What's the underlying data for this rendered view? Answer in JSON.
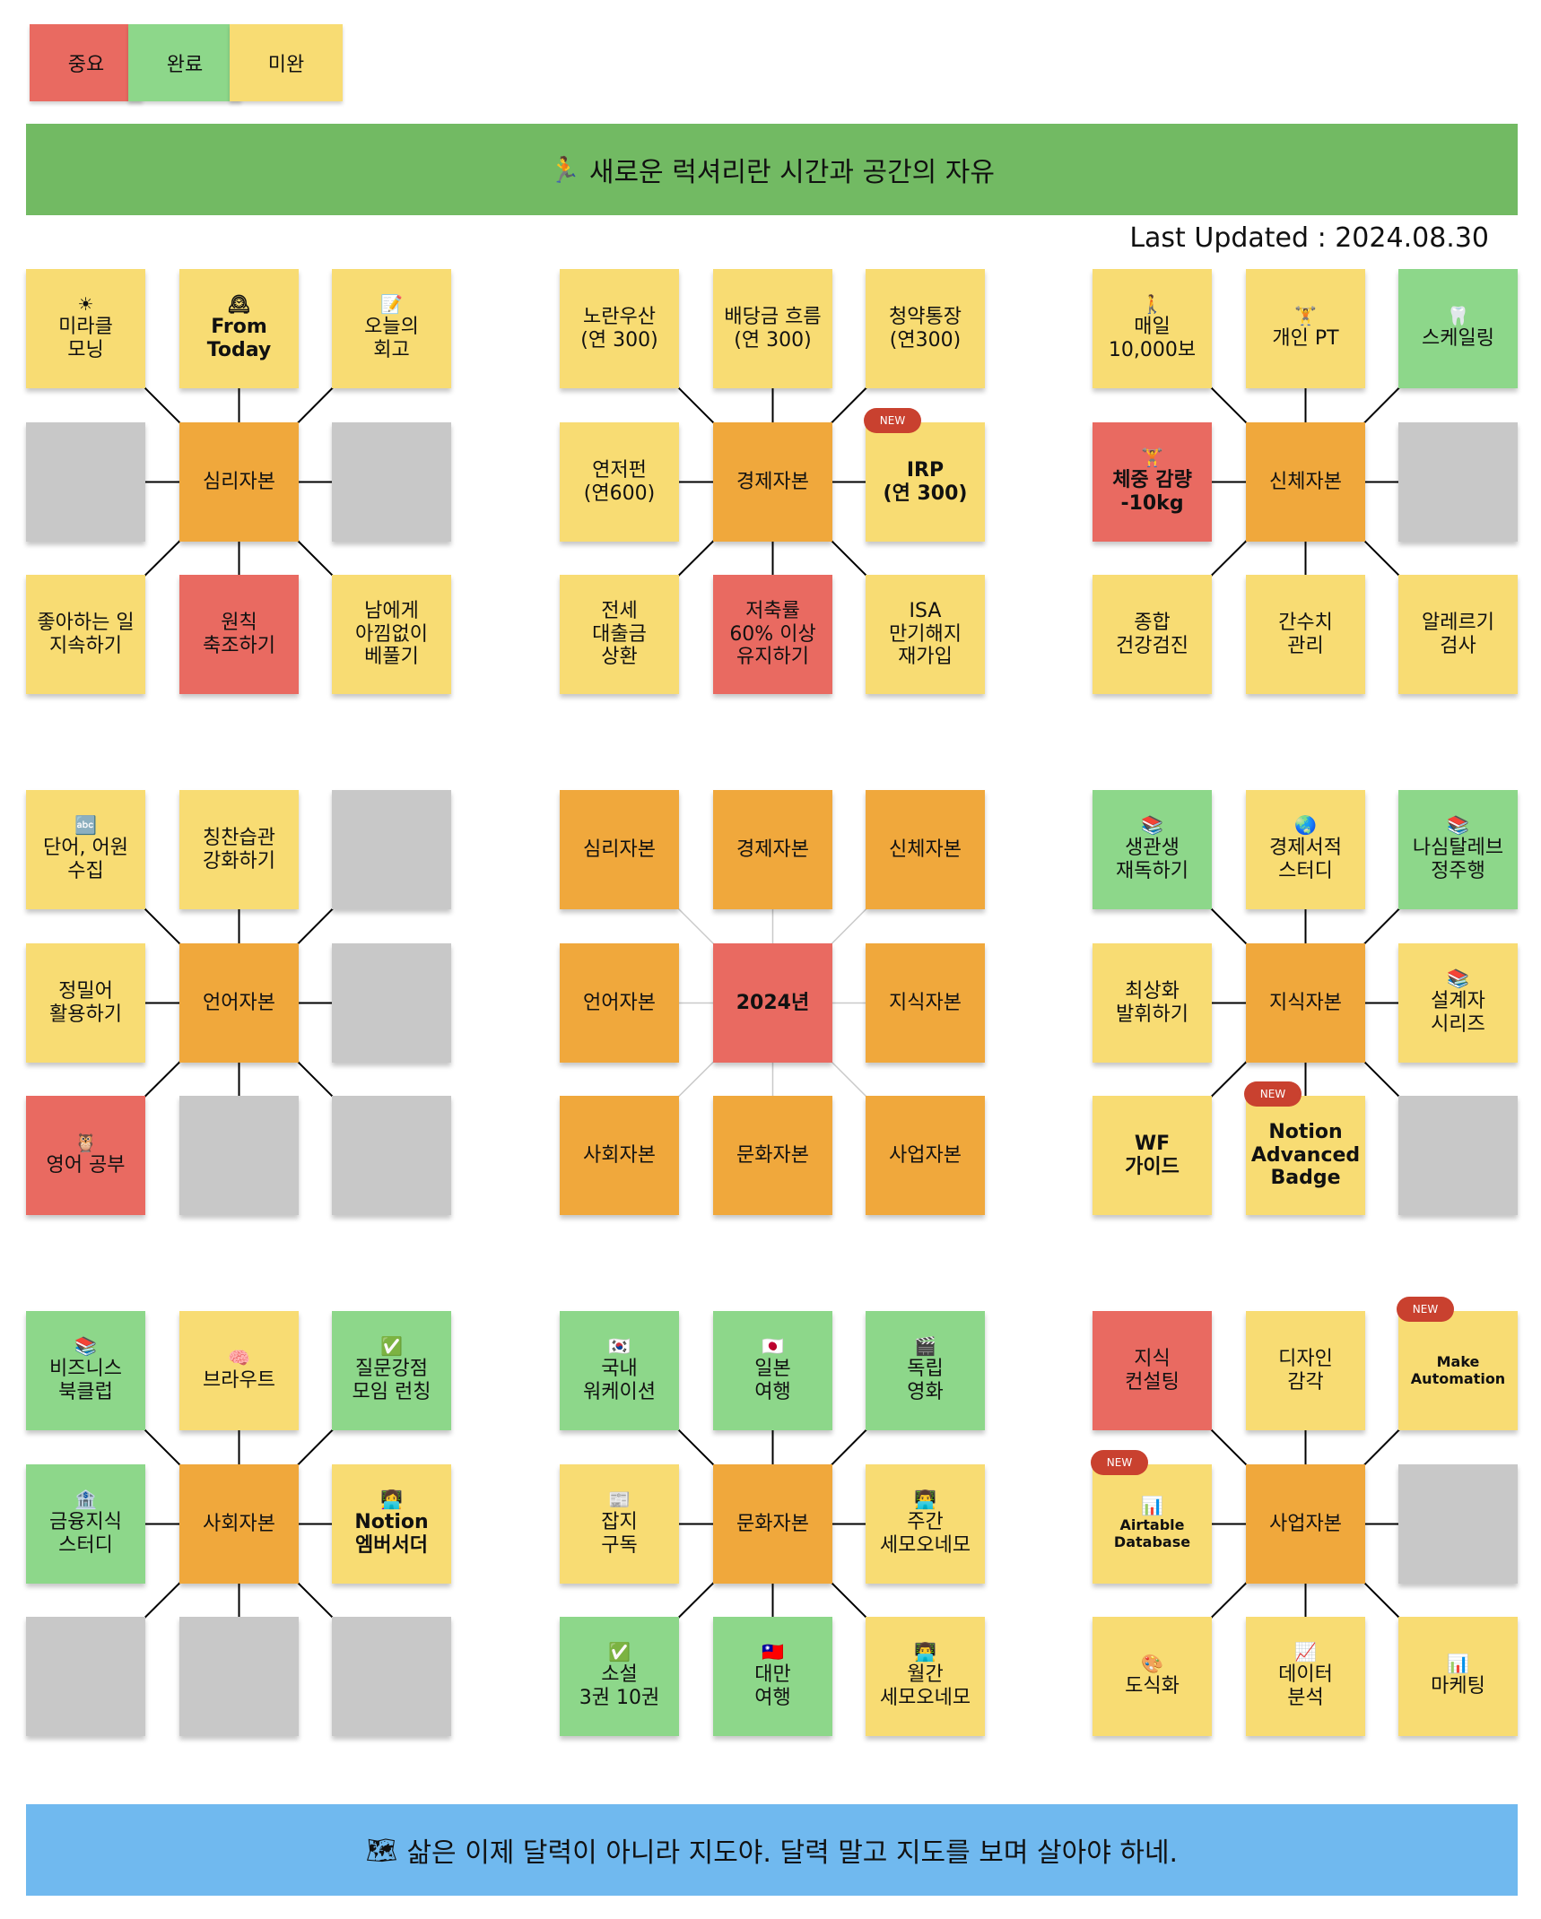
{
  "legend": [
    {
      "label": "중요",
      "color": "#e96a61"
    },
    {
      "label": "완료",
      "color": "#8dd78a"
    },
    {
      "label": "미완",
      "color": "#f8dc73"
    }
  ],
  "banner_top": {
    "icon": "runner-icon",
    "emoji": "🏃",
    "text": "새로운 럭셔리란 시간과 공간의 자유"
  },
  "last_updated": "Last Updated : 2024.08.30",
  "banner_bottom": {
    "icon": "map-icon",
    "emoji": "🗺",
    "text": "삶은 이제 달력이 아니라 지도야. 달력 말고 지도를 보며 살아야 하네."
  },
  "badge_label": "NEW",
  "blocks": [
    {
      "name": "psychology",
      "cells": [
        {
          "label": "미라클\n모닝",
          "color": "yellow",
          "icon": "sun-icon",
          "emoji": "☀"
        },
        {
          "label": "From\nToday",
          "color": "yellow",
          "icon": "clock-icon",
          "emoji": "🕰",
          "bold": true
        },
        {
          "label": "오늘의\n회고",
          "color": "yellow",
          "icon": "memo-icon",
          "emoji": "📝"
        },
        {
          "label": "",
          "color": "gray"
        },
        {
          "label": "심리자본",
          "color": "orange"
        },
        {
          "label": "",
          "color": "gray"
        },
        {
          "label": "좋아하는 일\n지속하기",
          "color": "yellow"
        },
        {
          "label": "원칙\n축조하기",
          "color": "red"
        },
        {
          "label": "남에게\n아낌없이\n베풀기",
          "color": "yellow"
        }
      ]
    },
    {
      "name": "economy",
      "cells": [
        {
          "label": "노란우산\n(연 300)",
          "color": "yellow"
        },
        {
          "label": "배당금 흐름\n(연 300)",
          "color": "yellow"
        },
        {
          "label": "청약통장\n(연300)",
          "color": "yellow"
        },
        {
          "label": "연저펀\n(연600)",
          "color": "yellow"
        },
        {
          "label": "경제자본",
          "color": "orange"
        },
        {
          "label": "IRP\n(연 300)",
          "color": "yellow",
          "bold": true,
          "new": true
        },
        {
          "label": "전세\n대출금\n상환",
          "color": "yellow"
        },
        {
          "label": "저축률\n60% 이상\n유지하기",
          "color": "red"
        },
        {
          "label": "ISA\n만기해지\n재가입",
          "color": "yellow"
        }
      ]
    },
    {
      "name": "physical",
      "cells": [
        {
          "label": "매일\n10,000보",
          "color": "yellow",
          "icon": "walking-icon",
          "emoji": "🚶"
        },
        {
          "label": "개인 PT",
          "color": "yellow",
          "icon": "weightlifter-icon",
          "emoji": "🏋"
        },
        {
          "label": "스케일링",
          "color": "green",
          "icon": "tooth-icon",
          "emoji": "🦷"
        },
        {
          "label": "체중 감량\n-10kg",
          "color": "red",
          "icon": "weightlifter-icon",
          "emoji": "🏋",
          "bold": true
        },
        {
          "label": "신체자본",
          "color": "orange"
        },
        {
          "label": "",
          "color": "gray"
        },
        {
          "label": "종합\n건강검진",
          "color": "yellow"
        },
        {
          "label": "간수치\n관리",
          "color": "yellow"
        },
        {
          "label": "알레르기\n검사",
          "color": "yellow"
        }
      ]
    },
    {
      "name": "language",
      "cells": [
        {
          "label": "단어, 어원\n수집",
          "color": "yellow",
          "icon": "abc-icon",
          "emoji": "🔤"
        },
        {
          "label": "칭찬습관\n강화하기",
          "color": "yellow"
        },
        {
          "label": "",
          "color": "gray"
        },
        {
          "label": "정밀어\n활용하기",
          "color": "yellow"
        },
        {
          "label": "언어자본",
          "color": "orange"
        },
        {
          "label": "",
          "color": "gray"
        },
        {
          "label": "영어 공부",
          "color": "red",
          "icon": "owl-icon",
          "emoji": "🦉"
        },
        {
          "label": "",
          "color": "gray"
        },
        {
          "label": "",
          "color": "gray"
        }
      ]
    },
    {
      "name": "center",
      "cells": [
        {
          "label": "심리자본",
          "color": "orange"
        },
        {
          "label": "경제자본",
          "color": "orange"
        },
        {
          "label": "신체자본",
          "color": "orange"
        },
        {
          "label": "언어자본",
          "color": "orange"
        },
        {
          "label": "2024년",
          "color": "red",
          "bold": true
        },
        {
          "label": "지식자본",
          "color": "orange"
        },
        {
          "label": "사회자본",
          "color": "orange"
        },
        {
          "label": "문화자본",
          "color": "orange"
        },
        {
          "label": "사업자본",
          "color": "orange"
        }
      ]
    },
    {
      "name": "knowledge",
      "cells": [
        {
          "label": "생관생\n재독하기",
          "color": "green",
          "icon": "books-icon",
          "emoji": "📚"
        },
        {
          "label": "경제서적\n스터디",
          "color": "yellow",
          "icon": "globe-icon",
          "emoji": "🌏"
        },
        {
          "label": "나심탈레브\n정주행",
          "color": "green",
          "icon": "books-icon",
          "emoji": "📚"
        },
        {
          "label": "최상화\n발휘하기",
          "color": "yellow"
        },
        {
          "label": "지식자본",
          "color": "orange"
        },
        {
          "label": "설계자\n시리즈",
          "color": "yellow",
          "icon": "books-icon",
          "emoji": "📚"
        },
        {
          "label": "WF\n가이드",
          "color": "yellow",
          "bold": true
        },
        {
          "label": "Notion\nAdvanced\nBadge",
          "color": "yellow",
          "bold": true,
          "new": true
        },
        {
          "label": "",
          "color": "gray"
        }
      ]
    },
    {
      "name": "social",
      "cells": [
        {
          "label": "비즈니스\n북클럽",
          "color": "green",
          "icon": "books-icon",
          "emoji": "📚"
        },
        {
          "label": "브라우트",
          "color": "yellow",
          "icon": "brain-icon",
          "emoji": "🧠"
        },
        {
          "label": "질문강점\n모임 런칭",
          "color": "green",
          "icon": "check-icon",
          "emoji": "✅"
        },
        {
          "label": "금융지식\n스터디",
          "color": "green",
          "icon": "bank-icon",
          "emoji": "🏦"
        },
        {
          "label": "사회자본",
          "color": "orange"
        },
        {
          "label": "Notion\n엠버서더",
          "color": "yellow",
          "icon": "person-icon",
          "emoji": "👩‍💻",
          "bold": true
        },
        {
          "label": "",
          "color": "gray"
        },
        {
          "label": "",
          "color": "gray"
        },
        {
          "label": "",
          "color": "gray"
        }
      ]
    },
    {
      "name": "culture",
      "cells": [
        {
          "label": "국내\n워케이션",
          "color": "green",
          "icon": "korea-flag-icon",
          "emoji": "🇰🇷"
        },
        {
          "label": "일본\n여행",
          "color": "green",
          "icon": "japan-flag-icon",
          "emoji": "🇯🇵"
        },
        {
          "label": "독립\n영화",
          "color": "green",
          "icon": "clapper-icon",
          "emoji": "🎬"
        },
        {
          "label": "잡지\n구독",
          "color": "yellow",
          "icon": "newspaper-icon",
          "emoji": "📰"
        },
        {
          "label": "문화자본",
          "color": "orange"
        },
        {
          "label": "주간\n세모오네모",
          "color": "yellow",
          "icon": "person-icon",
          "emoji": "👨‍💻"
        },
        {
          "label": "소설\n3권 10권",
          "color": "green",
          "icon": "check-icon",
          "emoji": "✅"
        },
        {
          "label": "대만\n여행",
          "color": "green",
          "icon": "taiwan-flag-icon",
          "emoji": "🇹🇼"
        },
        {
          "label": "월간\n세모오네모",
          "color": "yellow",
          "icon": "person-icon",
          "emoji": "👨‍💻"
        }
      ]
    },
    {
      "name": "business",
      "cells": [
        {
          "label": "지식\n컨설팅",
          "color": "red"
        },
        {
          "label": "디자인\n감각",
          "color": "yellow"
        },
        {
          "label": "Make\nAutomation",
          "color": "yellow",
          "small": true,
          "new": true
        },
        {
          "label": "Airtable\nDatabase",
          "color": "yellow",
          "icon": "chart-icon",
          "emoji": "📊",
          "small": true,
          "new": true
        },
        {
          "label": "사업자본",
          "color": "orange"
        },
        {
          "label": "",
          "color": "gray"
        },
        {
          "label": "도식화",
          "color": "yellow",
          "icon": "palette-icon",
          "emoji": "🎨"
        },
        {
          "label": "데이터\n분석",
          "color": "yellow",
          "icon": "chart-up-icon",
          "emoji": "📈"
        },
        {
          "label": "마케팅",
          "color": "yellow",
          "icon": "chart-icon",
          "emoji": "📊"
        }
      ]
    }
  ]
}
